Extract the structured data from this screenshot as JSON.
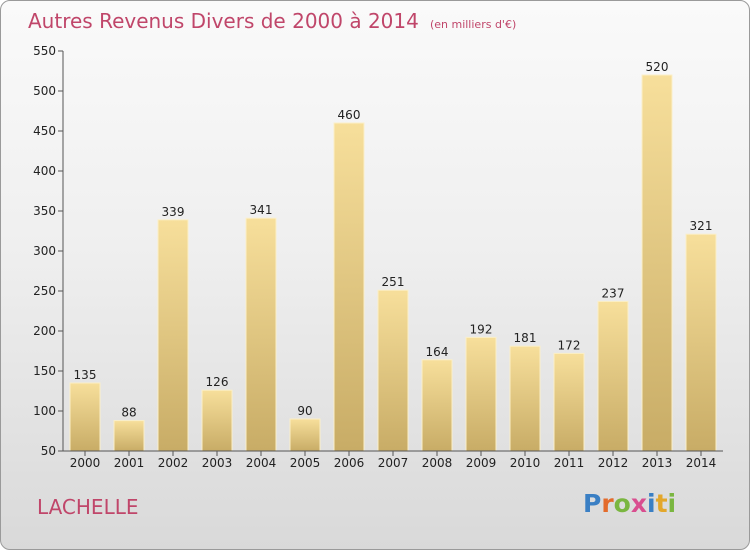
{
  "header": {
    "title": "Autres Revenus Divers de 2000 à 2014",
    "unit": "(en milliers d'€)"
  },
  "footer": {
    "place": "LACHELLE",
    "logo": "Proxiti"
  },
  "colors": {
    "title": "#c0466a",
    "bar_top": "#f7df9b",
    "bar_bottom": "#c8ac66",
    "logo_letters": [
      "#3a7fc4",
      "#e36b2b",
      "#7ab640",
      "#d94e8f",
      "#3a7fc4",
      "#e3a72b",
      "#7ab640"
    ]
  },
  "chart_data": {
    "type": "bar",
    "title": "Autres Revenus Divers de 2000 à 2014",
    "subtitle": "(en milliers d'€)",
    "categories": [
      "2000",
      "2001",
      "2002",
      "2003",
      "2004",
      "2005",
      "2006",
      "2007",
      "2008",
      "2009",
      "2010",
      "2011",
      "2012",
      "2013",
      "2014"
    ],
    "values": [
      135,
      88,
      339,
      126,
      341,
      90,
      460,
      251,
      164,
      192,
      181,
      172,
      237,
      520,
      321
    ],
    "ylim": [
      50,
      550
    ],
    "yticks": [
      50,
      100,
      150,
      200,
      250,
      300,
      350,
      400,
      450,
      500,
      550
    ],
    "grid": false,
    "xlabel": "",
    "ylabel": ""
  }
}
